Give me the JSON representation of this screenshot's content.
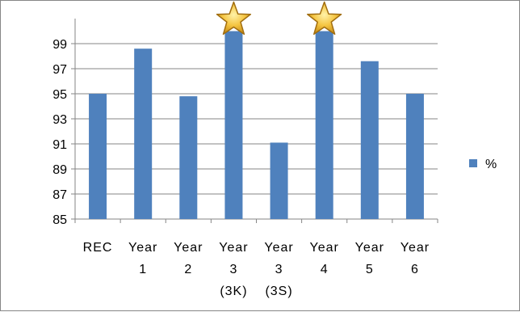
{
  "chart_data": {
    "type": "bar",
    "categories": [
      [
        "REC"
      ],
      [
        "Year",
        "1"
      ],
      [
        "Year",
        "2"
      ],
      [
        "Year",
        "3",
        "(3K)"
      ],
      [
        "Year",
        "3",
        "(3S)"
      ],
      [
        "Year",
        "4"
      ],
      [
        "Year",
        "5"
      ],
      [
        "Year",
        "6"
      ]
    ],
    "series": [
      {
        "name": "%",
        "color": "#4F81BD",
        "values": [
          95.0,
          98.6,
          94.8,
          100.0,
          91.1,
          100.0,
          97.6,
          95.0
        ]
      }
    ],
    "ylim": [
      85,
      101
    ],
    "yticks": [
      85,
      87,
      89,
      91,
      93,
      95,
      97,
      99
    ],
    "grid": true,
    "legend": "right",
    "star_markers": [
      3,
      5
    ],
    "star_icon": "gold-star-icon"
  }
}
